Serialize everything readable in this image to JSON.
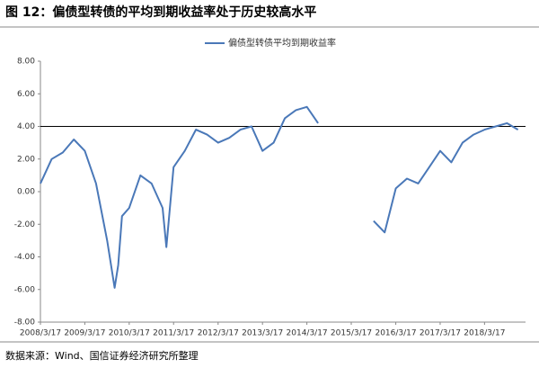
{
  "chart_data": {
    "type": "line",
    "title": "图 12：偏债型转债的平均到期收益率处于历史较高水平",
    "source": "数据来源：Wind、国信证券经济研究所整理",
    "x": [
      "2008/3/17",
      "2008/6/17",
      "2008/9/17",
      "2008/12/17",
      "2009/3/17",
      "2009/6/17",
      "2009/9/17",
      "2009/11/17",
      "2009/12/17",
      "2010/1/17",
      "2010/3/17",
      "2010/6/17",
      "2010/9/17",
      "2010/12/17",
      "2011/1/17",
      "2011/3/17",
      "2011/6/17",
      "2011/9/17",
      "2011/12/17",
      "2012/3/17",
      "2012/6/17",
      "2012/9/17",
      "2012/12/17",
      "2013/3/17",
      "2013/6/17",
      "2013/9/17",
      "2013/12/17",
      "2014/3/17",
      "2014/6/17",
      "2014/9/17",
      "2015/6/17",
      "2015/9/17",
      "2015/12/17",
      "2016/3/17",
      "2016/6/17",
      "2016/9/17",
      "2016/12/17",
      "2017/3/17",
      "2017/6/17",
      "2017/9/17",
      "2017/12/17",
      "2018/3/17",
      "2018/6/17",
      "2018/9/17",
      "2018/12/17"
    ],
    "series": [
      {
        "name": "偏债型转债平均到期收益率",
        "color": "#4a78b8",
        "values": [
          0.5,
          2.0,
          2.4,
          3.2,
          2.5,
          0.5,
          -3.0,
          -5.9,
          -4.5,
          -1.5,
          -1.0,
          1.0,
          0.5,
          -1.0,
          -3.4,
          1.5,
          2.5,
          3.8,
          3.5,
          3.0,
          3.3,
          3.8,
          4.0,
          2.5,
          3.0,
          4.5,
          5.0,
          5.2,
          4.2,
          null,
          null,
          -1.8,
          -2.5,
          0.2,
          0.8,
          0.5,
          1.5,
          2.5,
          1.8,
          3.0,
          3.5,
          3.8,
          4.0,
          4.2,
          3.8
        ]
      }
    ],
    "hline": 4,
    "xlim": [
      "2008/3/17",
      "2019/2/17"
    ],
    "xticks": [
      "2008/3/17",
      "2009/3/17",
      "2010/3/17",
      "2011/3/17",
      "2012/3/17",
      "2013/3/17",
      "2014/3/17",
      "2015/3/17",
      "2016/3/17",
      "2017/3/17",
      "2018/3/17"
    ],
    "ylim": [
      -8,
      8
    ],
    "yticks": [
      {
        "value": -8,
        "label": "-8.00"
      },
      {
        "value": -6,
        "label": "-6.00"
      },
      {
        "value": -4,
        "label": "-4.00"
      },
      {
        "value": -2,
        "label": "-2.00"
      },
      {
        "value": 0,
        "label": "0.00"
      },
      {
        "value": 2,
        "label": "2.00"
      },
      {
        "value": 4,
        "label": "4.00"
      },
      {
        "value": 6,
        "label": "6.00"
      },
      {
        "value": 8,
        "label": "8.00"
      }
    ],
    "legend": "top"
  }
}
